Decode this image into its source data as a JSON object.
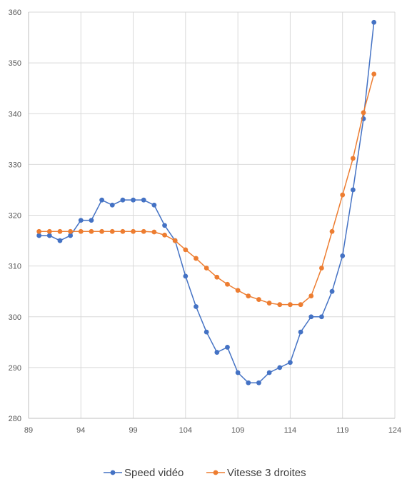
{
  "chart_data": {
    "type": "scatter",
    "title": "",
    "xlabel": "",
    "ylabel": "",
    "xlim": [
      89,
      124
    ],
    "ylim": [
      280,
      360
    ],
    "xticks": [
      89,
      94,
      99,
      104,
      109,
      114,
      119,
      124
    ],
    "yticks": [
      280,
      290,
      300,
      310,
      320,
      330,
      340,
      350,
      360
    ],
    "grid": true,
    "legend_position": "bottom",
    "series": [
      {
        "name": "Speed vidéo",
        "color": "#4472c4",
        "x": [
          90,
          91,
          92,
          93,
          94,
          95,
          96,
          97,
          98,
          99,
          100,
          101,
          102,
          103,
          104,
          105,
          106,
          107,
          108,
          109,
          110,
          111,
          112,
          113,
          114,
          115,
          116,
          117,
          118,
          119,
          120,
          121,
          122
        ],
        "y": [
          316,
          316,
          315,
          316,
          319,
          319,
          323,
          322,
          323,
          323,
          323,
          322,
          318,
          315,
          308,
          302,
          297,
          293,
          294,
          289,
          287,
          287,
          289,
          290,
          291,
          297,
          300,
          300,
          305,
          312,
          325,
          339,
          358
        ]
      },
      {
        "name": "Vitesse 3 droites",
        "color": "#ed7d31",
        "x": [
          90,
          91,
          92,
          93,
          94,
          95,
          96,
          97,
          98,
          99,
          100,
          101,
          102,
          103,
          104,
          105,
          106,
          107,
          108,
          109,
          110,
          111,
          112,
          113,
          114,
          115,
          116,
          117,
          118,
          119,
          120,
          121,
          122
        ],
        "y": [
          316.8,
          316.8,
          316.8,
          316.8,
          316.8,
          316.8,
          316.8,
          316.8,
          316.8,
          316.8,
          316.8,
          316.7,
          316.1,
          315.0,
          313.2,
          311.5,
          309.6,
          307.8,
          306.4,
          305.2,
          304.1,
          303.4,
          302.7,
          302.4,
          302.4,
          302.4,
          304.1,
          309.6,
          316.8,
          324.0,
          331.2,
          340.2,
          347.8
        ]
      }
    ]
  }
}
